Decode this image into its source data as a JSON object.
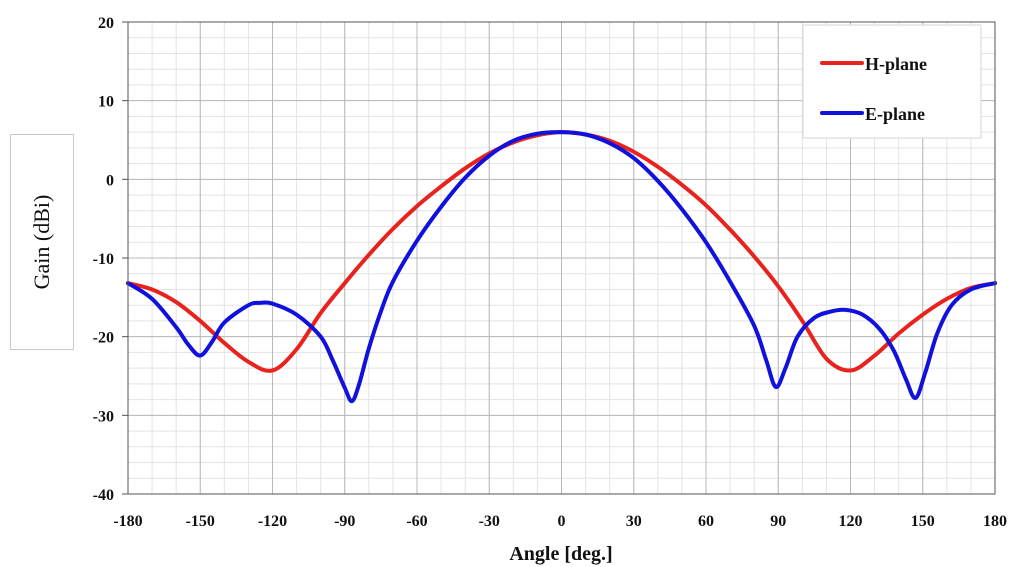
{
  "chart_data": {
    "type": "line",
    "xlabel": "Angle [deg.]",
    "ylabel": "Gain (dBi)",
    "xlim": [
      -180,
      180
    ],
    "ylim": [
      -40,
      20
    ],
    "xticks": [
      -180,
      -150,
      -120,
      -90,
      -60,
      -30,
      0,
      30,
      60,
      90,
      120,
      150,
      180
    ],
    "yticks": [
      -40,
      -30,
      -20,
      -10,
      0,
      10,
      20
    ],
    "grid": true,
    "legend": "top-right",
    "series": [
      {
        "name": "H-plane",
        "color": "#e8231d",
        "points": [
          [
            -180,
            -13.2
          ],
          [
            -170,
            -14.0
          ],
          [
            -160,
            -15.6
          ],
          [
            -150,
            -18.0
          ],
          [
            -140,
            -20.8
          ],
          [
            -130,
            -23.2
          ],
          [
            -120,
            -24.3
          ],
          [
            -110,
            -21.6
          ],
          [
            -100,
            -17.0
          ],
          [
            -90,
            -13.2
          ],
          [
            -80,
            -9.6
          ],
          [
            -70,
            -6.3
          ],
          [
            -60,
            -3.4
          ],
          [
            -50,
            -0.9
          ],
          [
            -40,
            1.4
          ],
          [
            -30,
            3.3
          ],
          [
            -20,
            4.7
          ],
          [
            -10,
            5.6
          ],
          [
            0,
            6.0
          ],
          [
            10,
            5.7
          ],
          [
            20,
            4.9
          ],
          [
            30,
            3.5
          ],
          [
            40,
            1.6
          ],
          [
            50,
            -0.7
          ],
          [
            60,
            -3.3
          ],
          [
            70,
            -6.4
          ],
          [
            80,
            -9.8
          ],
          [
            90,
            -13.6
          ],
          [
            100,
            -18.0
          ],
          [
            110,
            -22.8
          ],
          [
            120,
            -24.3
          ],
          [
            130,
            -22.4
          ],
          [
            140,
            -19.6
          ],
          [
            150,
            -17.2
          ],
          [
            160,
            -15.2
          ],
          [
            170,
            -13.8
          ],
          [
            180,
            -13.2
          ]
        ]
      },
      {
        "name": "E-plane",
        "color": "#1111dd",
        "points": [
          [
            -180,
            -13.2
          ],
          [
            -170,
            -15.2
          ],
          [
            -160,
            -18.8
          ],
          [
            -155,
            -21.0
          ],
          [
            -150,
            -22.4
          ],
          [
            -145,
            -20.6
          ],
          [
            -140,
            -18.2
          ],
          [
            -130,
            -16.0
          ],
          [
            -125,
            -15.7
          ],
          [
            -120,
            -15.8
          ],
          [
            -110,
            -17.2
          ],
          [
            -100,
            -20.0
          ],
          [
            -95,
            -23.0
          ],
          [
            -90,
            -26.5
          ],
          [
            -87,
            -28.2
          ],
          [
            -84,
            -26.0
          ],
          [
            -80,
            -21.5
          ],
          [
            -75,
            -16.8
          ],
          [
            -70,
            -13.0
          ],
          [
            -60,
            -7.8
          ],
          [
            -50,
            -3.5
          ],
          [
            -40,
            0.2
          ],
          [
            -30,
            3.0
          ],
          [
            -20,
            4.9
          ],
          [
            -10,
            5.8
          ],
          [
            0,
            6.0
          ],
          [
            10,
            5.7
          ],
          [
            20,
            4.6
          ],
          [
            30,
            2.7
          ],
          [
            40,
            -0.2
          ],
          [
            50,
            -3.8
          ],
          [
            60,
            -8.0
          ],
          [
            70,
            -13.0
          ],
          [
            80,
            -18.6
          ],
          [
            85,
            -23.0
          ],
          [
            89,
            -26.4
          ],
          [
            93,
            -24.0
          ],
          [
            98,
            -20.0
          ],
          [
            105,
            -17.6
          ],
          [
            112,
            -16.8
          ],
          [
            118,
            -16.6
          ],
          [
            125,
            -17.2
          ],
          [
            132,
            -19.0
          ],
          [
            138,
            -21.8
          ],
          [
            143,
            -25.4
          ],
          [
            147,
            -27.8
          ],
          [
            151,
            -24.6
          ],
          [
            156,
            -19.6
          ],
          [
            162,
            -16.0
          ],
          [
            170,
            -14.0
          ],
          [
            180,
            -13.2
          ]
        ]
      }
    ]
  }
}
